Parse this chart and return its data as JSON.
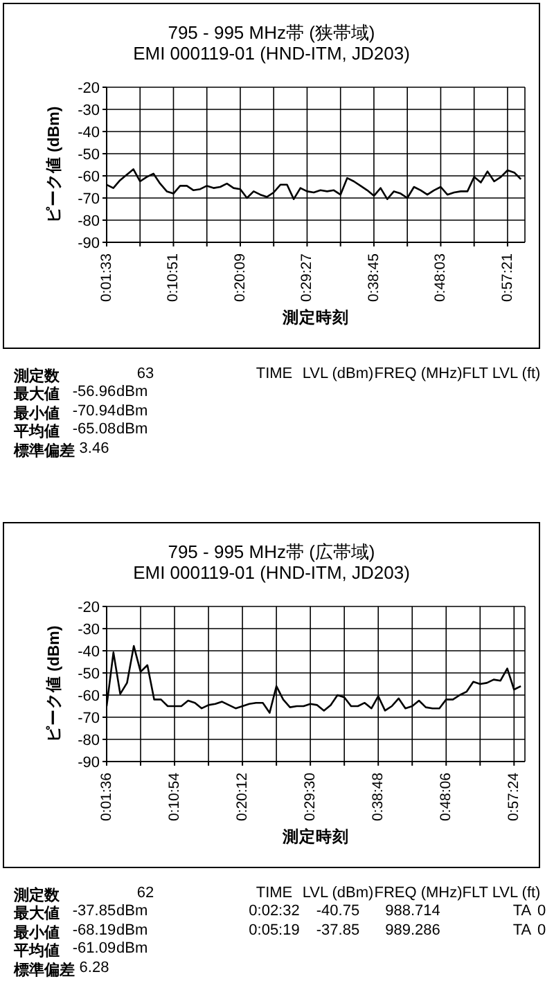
{
  "chart_data": [
    {
      "type": "line",
      "title": "795 - 995 MHz帯 (狭帯域)",
      "subtitle": "EMI 000119-01 (HND-ITM,  JD203)",
      "xlabel": "測定時刻",
      "ylabel": "ピーク値 (dBm)",
      "categories": [
        "0:01:33",
        null,
        null,
        null,
        null,
        null,
        null,
        null,
        null,
        null,
        "0:10:51",
        null,
        null,
        null,
        null,
        null,
        null,
        null,
        null,
        null,
        "0:20:09",
        null,
        null,
        null,
        null,
        null,
        null,
        null,
        null,
        null,
        "0:29:27",
        null,
        null,
        null,
        null,
        null,
        null,
        null,
        null,
        null,
        "0:38:45",
        null,
        null,
        null,
        null,
        null,
        null,
        null,
        null,
        null,
        "0:48:03",
        null,
        null,
        null,
        null,
        null,
        null,
        null,
        null,
        null,
        "0:57:21",
        null,
        null
      ],
      "values": [
        -64,
        -65.5,
        -62,
        -59.5,
        -57,
        -62.5,
        -60.5,
        -59,
        -63.5,
        -67,
        -68,
        -64.5,
        -64.5,
        -66.5,
        -66,
        -64.5,
        -65.5,
        -65,
        -63.5,
        -65.5,
        -66,
        -70,
        -67,
        -68.5,
        -69.5,
        -67.5,
        -64,
        -64,
        -70.5,
        -65.5,
        -67,
        -67.5,
        -66.5,
        -67,
        -66.5,
        -68.5,
        -61,
        -62.5,
        -64.5,
        -66.5,
        -69,
        -65.5,
        -70.5,
        -67,
        -68,
        -70,
        -65,
        -66.5,
        -68.5,
        -66.5,
        -65,
        -68.5,
        -67.5,
        -67,
        -67,
        -60.5,
        -63,
        -58,
        -62.5,
        -60.5,
        -57.5,
        -58.5,
        -61.5
      ],
      "color": "#000000",
      "ylim": [
        -90,
        -20
      ],
      "yticks": [
        -90,
        -80,
        -70,
        -60,
        -50,
        -40,
        -30,
        -20
      ],
      "grid": true,
      "marker": "none",
      "line_style": "solid",
      "annotations": [
        "測定数",
        "63",
        "最大値",
        "-56.96",
        "dBm",
        "最小値",
        "-70.94",
        "dBm",
        "平均値",
        "-65.08",
        "dBm",
        "標準偏差",
        "3.46",
        "TIME",
        "LVL (dBm)",
        "FREQ (MHz)",
        "FLT LVL (ft)"
      ]
    },
    {
      "type": "line",
      "title": "795 - 995 MHz帯 (広帯域)",
      "subtitle": "EMI 000119-01 (HND-ITM,  JD203)",
      "xlabel": "測定時刻",
      "ylabel": "ピーク値 (dBm)",
      "categories": [
        "0:01:36",
        null,
        null,
        null,
        null,
        null,
        null,
        null,
        null,
        null,
        "0:10:54",
        null,
        null,
        null,
        null,
        null,
        null,
        null,
        null,
        null,
        "0:20:12",
        null,
        null,
        null,
        null,
        null,
        null,
        null,
        null,
        null,
        "0:29:30",
        null,
        null,
        null,
        null,
        null,
        null,
        null,
        null,
        null,
        "0:38:48",
        null,
        null,
        null,
        null,
        null,
        null,
        null,
        null,
        null,
        "0:48:06",
        null,
        null,
        null,
        null,
        null,
        null,
        null,
        null,
        null,
        "0:57:24",
        null
      ],
      "values": [
        -65,
        -40.75,
        -59.5,
        -54.5,
        -37.85,
        -49.5,
        -46.5,
        -62,
        -62,
        -65,
        -65,
        -65,
        -62.5,
        -63.5,
        -66,
        -64.5,
        -64,
        -63,
        -64.5,
        -66,
        -65,
        -64,
        -63.5,
        -63.5,
        -68,
        -56,
        -62,
        -65.5,
        -65,
        -65,
        -64,
        -64.5,
        -67,
        -64.5,
        -60,
        -61,
        -65,
        -65,
        -63.5,
        -66,
        -60.5,
        -67,
        -65,
        -61.5,
        -66,
        -65,
        -62.5,
        -65.5,
        -66,
        -66,
        -62,
        -62,
        -60,
        -58.5,
        -54,
        -55,
        -54.5,
        -53,
        -53.5,
        -48,
        -57.5,
        -56
      ],
      "color": "#000000",
      "ylim": [
        -90,
        -20
      ],
      "yticks": [
        -90,
        -80,
        -70,
        -60,
        -50,
        -40,
        -30,
        -20
      ],
      "grid": true,
      "marker": "none",
      "line_style": "solid",
      "annotations": [
        "測定数",
        "62",
        "最大値",
        "-37.85",
        "dBm",
        "最小値",
        "-68.19",
        "dBm",
        "平均値",
        "-61.09",
        "dBm",
        "標準偏差",
        "6.28",
        "TIME",
        "LVL (dBm)",
        "FREQ (MHz)",
        "FLT LVL (ft)",
        "0:02:32",
        "-40.75",
        "988.714",
        "TA",
        "0",
        "0:05:19",
        "-37.85",
        "989.286",
        "TA",
        "0"
      ]
    }
  ]
}
